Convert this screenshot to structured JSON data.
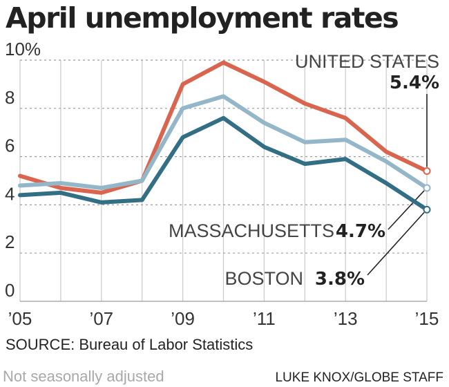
{
  "chart_data": {
    "type": "line",
    "title": "April unemployment rates",
    "x": [
      "2005",
      "2006",
      "2007",
      "2008",
      "2009",
      "2010",
      "2011",
      "2012",
      "2013",
      "2014",
      "2015"
    ],
    "x_tick_labels": [
      "’05",
      "’07",
      "’09",
      "’11",
      "’13",
      "’15"
    ],
    "y_tick_labels": [
      "10%",
      "8",
      "6",
      "4",
      "2",
      "0"
    ],
    "ylim": [
      0,
      10
    ],
    "grid": true,
    "series": [
      {
        "name": "UNITED STATES",
        "final_label": "5.4%",
        "color": "#d9654f",
        "values": [
          5.2,
          4.7,
          4.5,
          5.0,
          9.0,
          9.9,
          9.1,
          8.2,
          7.6,
          6.2,
          5.4
        ]
      },
      {
        "name": "MASSACHUSETTS",
        "final_label": "4.7%",
        "color": "#93b6c8",
        "values": [
          4.8,
          4.9,
          4.7,
          5.0,
          8.0,
          8.5,
          7.4,
          6.6,
          6.7,
          5.8,
          4.7
        ]
      },
      {
        "name": "BOSTON",
        "final_label": "3.8%",
        "color": "#336f84",
        "values": [
          4.4,
          4.5,
          4.1,
          4.2,
          6.8,
          7.6,
          6.4,
          5.7,
          5.9,
          4.9,
          3.8
        ]
      }
    ]
  },
  "source": "SOURCE: Bureau of Labor Statistics",
  "note": "Not seasonally adjusted",
  "credit": "LUKE KNOX/GLOBE STAFF"
}
